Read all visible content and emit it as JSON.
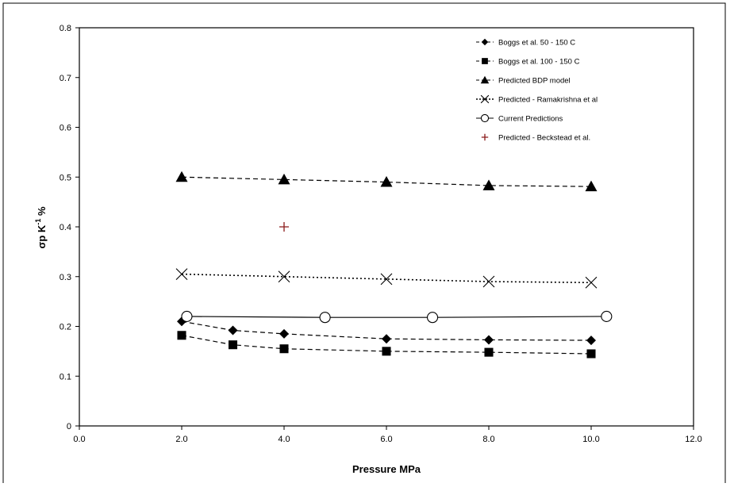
{
  "chart_data": {
    "type": "scatter",
    "xlabel": "Pressure MPa",
    "ylabel_main": "σp K",
    "ylabel_sup": "-1",
    "ylabel_tail": " %",
    "xlim": [
      0,
      12
    ],
    "ylim": [
      0,
      0.8
    ],
    "x_ticks": [
      "0.0",
      "2.0",
      "4.0",
      "6.0",
      "8.0",
      "10.0",
      "12.0"
    ],
    "y_ticks": [
      "0",
      "0.1",
      "0.2",
      "0.3",
      "0.4",
      "0.5",
      "0.6",
      "0.7",
      "0.8"
    ],
    "grid": false,
    "legend_position": "top-right",
    "series": [
      {
        "name": "Boggs et al. 50 - 150 C",
        "marker": "diamond",
        "line": "dashed",
        "color": "#000000",
        "x": [
          2.0,
          3.0,
          4.0,
          6.0,
          8.0,
          10.0
        ],
        "y": [
          0.21,
          0.192,
          0.185,
          0.175,
          0.173,
          0.172
        ]
      },
      {
        "name": "Boggs et al. 100 - 150 C",
        "marker": "square",
        "line": "dashed",
        "color": "#000000",
        "x": [
          2.0,
          3.0,
          4.0,
          6.0,
          8.0,
          10.0
        ],
        "y": [
          0.182,
          0.163,
          0.155,
          0.15,
          0.148,
          0.145
        ]
      },
      {
        "name": "Predicted BDP model",
        "marker": "triangle",
        "line": "dashed",
        "color": "#000000",
        "x": [
          2.0,
          4.0,
          6.0,
          8.0,
          10.0
        ],
        "y": [
          0.5,
          0.495,
          0.49,
          0.483,
          0.481
        ]
      },
      {
        "name": "Predicted - Ramakrishna et al",
        "marker": "x",
        "line": "dotted",
        "color": "#000000",
        "x": [
          2.0,
          4.0,
          6.0,
          8.0,
          10.0
        ],
        "y": [
          0.305,
          0.3,
          0.295,
          0.29,
          0.288
        ]
      },
      {
        "name": "Current Predictions",
        "marker": "circle",
        "line": "solid",
        "color": "#000000",
        "x": [
          2.1,
          4.8,
          6.9,
          10.3
        ],
        "y": [
          0.22,
          0.218,
          0.218,
          0.22
        ]
      },
      {
        "name": "Predicted - Beckstead et al.",
        "marker": "plus",
        "line": "none",
        "color": "#8b1a1a",
        "x": [
          4.0
        ],
        "y": [
          0.4
        ]
      }
    ]
  }
}
